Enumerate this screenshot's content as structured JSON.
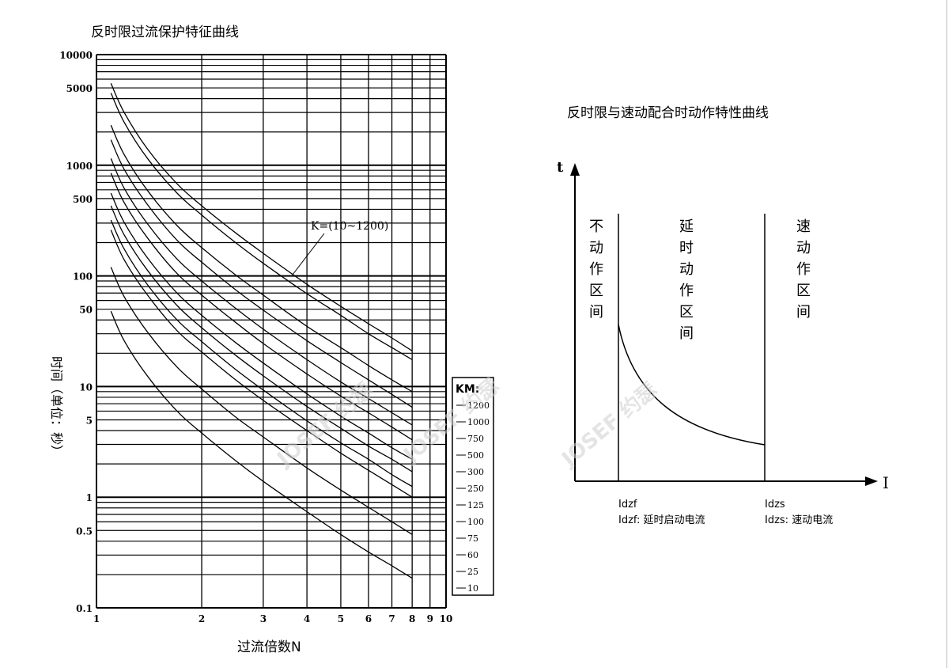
{
  "chart_data": [
    {
      "type": "line",
      "title": "反时限过流保护特征曲线",
      "xlabel": "过流倍数N",
      "ylabel": "时间（单位：秒）",
      "xscale": "log",
      "yscale": "log",
      "xlim": [
        1,
        10
      ],
      "ylim": [
        0.1,
        10000
      ],
      "x_ticks": [
        "1",
        "2",
        "3",
        "4",
        "5",
        "6",
        "7",
        "8",
        "9",
        "10"
      ],
      "y_ticks": [
        "10000",
        "5000",
        "1000",
        "500",
        "100",
        "50",
        "10",
        "5",
        "1",
        "0.5",
        "0.1"
      ],
      "grid": true,
      "annotation": "K=(10~1200)",
      "legend": {
        "title": "KM:",
        "placement": "right-bottom",
        "entries": [
          "1200",
          "1000",
          "750",
          "500",
          "300",
          "250",
          "125",
          "100",
          "75",
          "60",
          "25",
          "10"
        ]
      },
      "x": [
        1.1,
        1.2,
        1.4,
        1.7,
        2,
        2.5,
        3,
        4,
        5,
        6,
        7,
        8
      ],
      "series": [
        {
          "name": "1200",
          "values": [
            5500,
            3000,
            1400,
            680,
            430,
            245,
            160,
            84,
            53,
            37,
            27.5,
            21
          ]
        },
        {
          "name": "1000",
          "values": [
            4500,
            2450,
            1150,
            560,
            355,
            200,
            130,
            69,
            44,
            30,
            22.5,
            17.5
          ]
        },
        {
          "name": "750",
          "values": [
            2300,
            1250,
            590,
            285,
            180,
            102,
            67,
            35,
            22.5,
            15.5,
            11.5,
            9
          ]
        },
        {
          "name": "500",
          "values": [
            1700,
            920,
            440,
            210,
            133,
            75,
            49,
            26,
            16.5,
            11.5,
            8.5,
            6.5
          ]
        },
        {
          "name": "300",
          "values": [
            1150,
            620,
            295,
            142,
            90,
            51,
            33,
            17.5,
            11,
            7.8,
            5.8,
            4.5
          ]
        },
        {
          "name": "250",
          "values": [
            850,
            460,
            220,
            105,
            67,
            38,
            24.5,
            13,
            8.2,
            5.8,
            4.3,
            3.3
          ]
        },
        {
          "name": "125",
          "values": [
            560,
            305,
            145,
            70,
            44,
            25,
            16.3,
            8.6,
            5.4,
            3.8,
            2.8,
            2.2
          ]
        },
        {
          "name": "100",
          "values": [
            430,
            235,
            112,
            54,
            34,
            19.2,
            12.5,
            6.6,
            4.2,
            2.9,
            2.2,
            1.7
          ]
        },
        {
          "name": "75",
          "values": [
            320,
            175,
            83,
            40,
            25.5,
            14.3,
            9.3,
            4.9,
            3.1,
            2.2,
            1.6,
            1.25
          ]
        },
        {
          "name": "60",
          "values": [
            260,
            140,
            67,
            32,
            20.5,
            11.5,
            7.5,
            4,
            2.5,
            1.75,
            1.3,
            1
          ]
        },
        {
          "name": "25",
          "values": [
            120,
            65,
            31,
            15,
            9.5,
            5.3,
            3.5,
            1.84,
            1.16,
            0.81,
            0.6,
            0.46
          ]
        },
        {
          "name": "10",
          "values": [
            48,
            26,
            12.4,
            6,
            3.8,
            2.14,
            1.39,
            0.74,
            0.46,
            0.32,
            0.24,
            0.185
          ]
        }
      ]
    },
    {
      "type": "line",
      "title": "反时限与速动配合时动作特性曲线",
      "xlabel": "I",
      "ylabel": "t",
      "zones": [
        "不动作区间",
        "延时动作区间",
        "速动作区间"
      ],
      "markers": [
        "Idzf",
        "Idzs"
      ],
      "notes": [
        "Idzf: 延时启动电流",
        "Idzs: 速动电流"
      ]
    }
  ],
  "watermark": "JOSEF 约瑟"
}
